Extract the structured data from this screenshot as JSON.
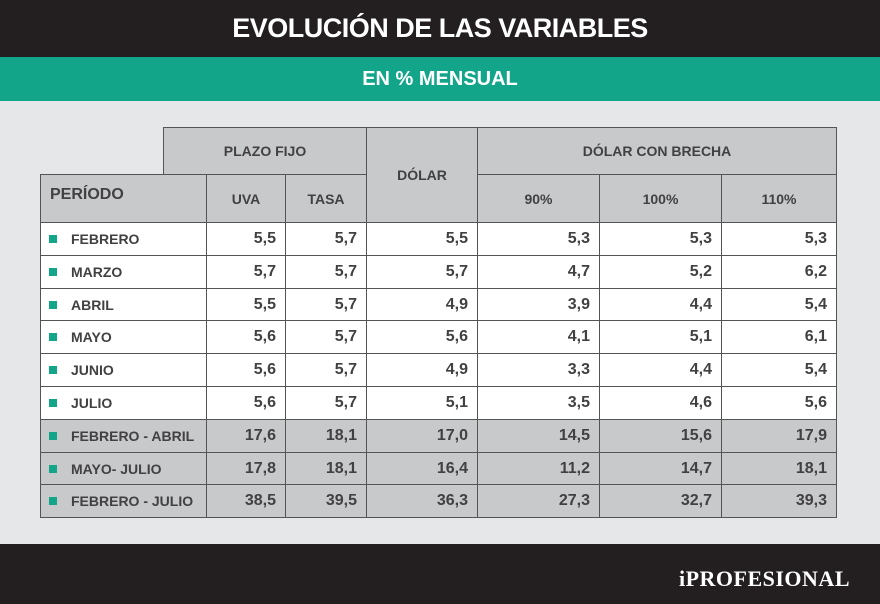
{
  "title": "EVOLUCIÓN DE LAS VARIABLES",
  "subtitle": "EN % MENSUAL",
  "brand": "iPROFESIONAL",
  "colors": {
    "accent": "#12a58a",
    "header_bg": "#231f20",
    "cell_header": "#c8c9cb"
  },
  "chart_data": {
    "type": "table",
    "title": "EVOLUCIÓN DE LAS VARIABLES",
    "subtitle": "EN % MENSUAL",
    "row_header": "PERÍODO",
    "groups": [
      {
        "name": "PLAZO FIJO",
        "columns": [
          "UVA",
          "TASA"
        ]
      },
      {
        "name": "DÓLAR",
        "columns": [
          "DÓLAR"
        ]
      },
      {
        "name": "DÓLAR CON BRECHA",
        "columns": [
          "90%",
          "100%",
          "110%"
        ]
      }
    ],
    "columns": [
      "UVA",
      "TASA",
      "DÓLAR",
      "90%",
      "100%",
      "110%"
    ],
    "rows": [
      {
        "label": "FEBRERO",
        "values": [
          "5,5",
          "5,7",
          "5,5",
          "5,3",
          "5,3",
          "5,3"
        ],
        "summary": false
      },
      {
        "label": "MARZO",
        "values": [
          "5,7",
          "5,7",
          "5,7",
          "4,7",
          "5,2",
          "6,2"
        ],
        "summary": false
      },
      {
        "label": "ABRIL",
        "values": [
          "5,5",
          "5,7",
          "4,9",
          "3,9",
          "4,4",
          "5,4"
        ],
        "summary": false
      },
      {
        "label": "MAYO",
        "values": [
          "5,6",
          "5,7",
          "5,6",
          "4,1",
          "5,1",
          "6,1"
        ],
        "summary": false
      },
      {
        "label": "JUNIO",
        "values": [
          "5,6",
          "5,7",
          "4,9",
          "3,3",
          "4,4",
          "5,4"
        ],
        "summary": false
      },
      {
        "label": "JULIO",
        "values": [
          "5,6",
          "5,7",
          "5,1",
          "3,5",
          "4,6",
          "5,6"
        ],
        "summary": false
      },
      {
        "label": "FEBRERO - ABRIL",
        "values": [
          "17,6",
          "18,1",
          "17,0",
          "14,5",
          "15,6",
          "17,9"
        ],
        "summary": true
      },
      {
        "label": "MAYO- JULIO",
        "values": [
          "17,8",
          "18,1",
          "16,4",
          "11,2",
          "14,7",
          "18,1"
        ],
        "summary": true
      },
      {
        "label": "FEBRERO - JULIO",
        "values": [
          "38,5",
          "39,5",
          "36,3",
          "27,3",
          "32,7",
          "39,3"
        ],
        "summary": true
      }
    ]
  }
}
